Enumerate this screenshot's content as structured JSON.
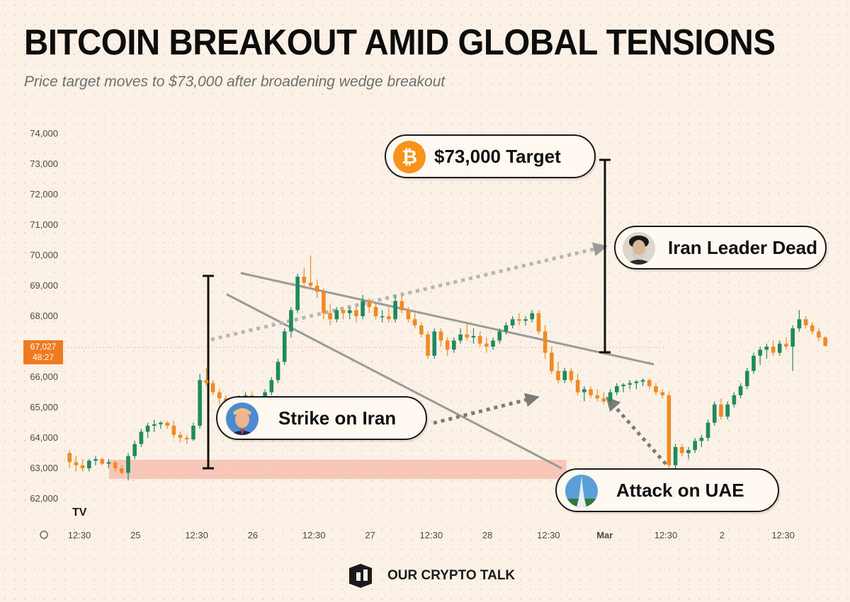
{
  "title": "BITCOIN BREAKOUT AMID GLOBAL TENSIONS",
  "subtitle": "Price target moves to $73,000 after broadening wedge breakout",
  "price_tag": {
    "price": "67,027",
    "countdown": "48:27",
    "color": "#f07a1f"
  },
  "brand": {
    "name": "OUR CRYPTO TALK",
    "tradingview_mark": "TV"
  },
  "callouts": {
    "target": {
      "label": "$73,000 Target",
      "icon": "bitcoin-icon"
    },
    "leader": {
      "label": "Iran Leader Dead",
      "icon": "portrait-icon"
    },
    "strike": {
      "label": "Strike on Iran",
      "icon": "portrait-icon"
    },
    "uae": {
      "label": "Attack on UAE",
      "icon": "skyscraper-icon"
    }
  },
  "colors": {
    "up": "#1f8a5c",
    "down": "#f08a24",
    "support_zone": "#f6b8a8",
    "trend": "#9a9a9a"
  },
  "chart_data": {
    "type": "candlestick",
    "title": "",
    "xlabel": "",
    "ylabel": "",
    "ylim": [
      61700,
      74300
    ],
    "y_ticks": [
      62000,
      63000,
      64000,
      65000,
      66000,
      67000,
      68000,
      69000,
      70000,
      71000,
      72000,
      73000,
      74000
    ],
    "y_tick_labels": [
      "62,000",
      "63,000",
      "64,000",
      "65,000",
      "66,000",
      "",
      "68,000",
      "69,000",
      "70,000",
      "71,000",
      "72,000",
      "73,000",
      "74,000"
    ],
    "x_tick_labels": [
      "12:30",
      "25",
      "12:30",
      "26",
      "12:30",
      "27",
      "12:30",
      "28",
      "12:30",
      "Mar",
      "12:30",
      "2",
      "12:30"
    ],
    "x_tick_times": [
      12.5,
      24,
      36.5,
      48,
      60.5,
      72,
      84.5,
      96,
      108.5,
      120,
      132.5,
      144,
      156.5
    ],
    "time_unit": "hours from Feb 24 00:00",
    "candle_interval_hours": 1.333,
    "first_candle_time": 10.5,
    "candles": [
      [
        63500,
        63600,
        63000,
        63200
      ],
      [
        63200,
        63400,
        62900,
        63100
      ],
      [
        63100,
        63300,
        62900,
        63000
      ],
      [
        63000,
        63300,
        62900,
        63250
      ],
      [
        63250,
        63400,
        63100,
        63300
      ],
      [
        63300,
        63350,
        63100,
        63150
      ],
      [
        63150,
        63300,
        63000,
        63200
      ],
      [
        63200,
        63250,
        62900,
        63000
      ],
      [
        63000,
        63100,
        62800,
        62850
      ],
      [
        62850,
        63500,
        62600,
        63400
      ],
      [
        63400,
        63900,
        63300,
        63800
      ],
      [
        63800,
        64300,
        63700,
        64200
      ],
      [
        64200,
        64500,
        64000,
        64400
      ],
      [
        64400,
        64600,
        64200,
        64450
      ],
      [
        64450,
        64550,
        64300,
        64500
      ],
      [
        64500,
        64550,
        64300,
        64400
      ],
      [
        64400,
        64550,
        64000,
        64100
      ],
      [
        64100,
        64200,
        63850,
        64000
      ],
      [
        64000,
        64100,
        63800,
        63950
      ],
      [
        63950,
        64500,
        63900,
        64400
      ],
      [
        64400,
        66100,
        64300,
        65900
      ],
      [
        65900,
        66300,
        65700,
        65800
      ],
      [
        65800,
        65900,
        65400,
        65500
      ],
      [
        65500,
        65600,
        65100,
        65300
      ],
      [
        65300,
        65400,
        64800,
        64900
      ],
      [
        64900,
        65100,
        64800,
        65000
      ],
      [
        65000,
        65400,
        64900,
        65300
      ],
      [
        65300,
        65500,
        65200,
        65400
      ],
      [
        65400,
        65500,
        65100,
        65200
      ],
      [
        65200,
        65300,
        64900,
        65000
      ],
      [
        65000,
        65600,
        64900,
        65500
      ],
      [
        65500,
        66000,
        65400,
        65900
      ],
      [
        65900,
        66600,
        65800,
        66500
      ],
      [
        66500,
        67600,
        66400,
        67500
      ],
      [
        67500,
        68300,
        67300,
        68200
      ],
      [
        68200,
        69400,
        68100,
        69300
      ],
      [
        69300,
        69600,
        68900,
        69100
      ],
      [
        69100,
        70000,
        68900,
        69000
      ],
      [
        69000,
        69200,
        68600,
        68800
      ],
      [
        68800,
        68900,
        67900,
        68100
      ],
      [
        68100,
        68400,
        67700,
        67900
      ],
      [
        67900,
        68300,
        67800,
        68200
      ],
      [
        68200,
        68300,
        67900,
        68100
      ],
      [
        68100,
        68300,
        67900,
        68200
      ],
      [
        68200,
        68300,
        67800,
        68000
      ],
      [
        68000,
        68700,
        67900,
        68500
      ],
      [
        68500,
        68600,
        68100,
        68300
      ],
      [
        68300,
        68400,
        67900,
        68000
      ],
      [
        68000,
        68200,
        67800,
        68000
      ],
      [
        68000,
        68300,
        67800,
        67900
      ],
      [
        67900,
        68700,
        67800,
        68500
      ],
      [
        68500,
        68700,
        68100,
        68200
      ],
      [
        68200,
        68300,
        67800,
        67900
      ],
      [
        67900,
        68100,
        67600,
        67700
      ],
      [
        67700,
        67800,
        67300,
        67400
      ],
      [
        67400,
        67500,
        66600,
        66700
      ],
      [
        66700,
        67600,
        66600,
        67500
      ],
      [
        67500,
        67600,
        67000,
        67200
      ],
      [
        67200,
        67300,
        66700,
        66900
      ],
      [
        66900,
        67300,
        66800,
        67200
      ],
      [
        67200,
        67600,
        67100,
        67400
      ],
      [
        67400,
        67800,
        67200,
        67300
      ],
      [
        67300,
        67600,
        67100,
        67350
      ],
      [
        67350,
        67500,
        67000,
        67100
      ],
      [
        67100,
        67300,
        66800,
        67000
      ],
      [
        67000,
        67300,
        66900,
        67200
      ],
      [
        67200,
        67600,
        67100,
        67500
      ],
      [
        67500,
        67800,
        67400,
        67700
      ],
      [
        67700,
        68000,
        67600,
        67900
      ],
      [
        67900,
        68100,
        67700,
        67850
      ],
      [
        67850,
        68000,
        67700,
        67900
      ],
      [
        67900,
        68200,
        67800,
        68100
      ],
      [
        68100,
        68200,
        67400,
        67500
      ],
      [
        67500,
        67700,
        66600,
        66800
      ],
      [
        66800,
        67000,
        66100,
        66200
      ],
      [
        66200,
        66500,
        65800,
        65900
      ],
      [
        65900,
        66300,
        65800,
        66200
      ],
      [
        66200,
        66300,
        65800,
        65900
      ],
      [
        65900,
        66100,
        65400,
        65500
      ],
      [
        65500,
        65700,
        65200,
        65600
      ],
      [
        65600,
        65700,
        65300,
        65400
      ],
      [
        65400,
        65600,
        65200,
        65300
      ],
      [
        65300,
        65500,
        65100,
        65200
      ],
      [
        65200,
        65600,
        65100,
        65500
      ],
      [
        65500,
        65800,
        65400,
        65700
      ],
      [
        65700,
        65800,
        65500,
        65750
      ],
      [
        65750,
        65900,
        65600,
        65800
      ],
      [
        65800,
        65900,
        65600,
        65850
      ],
      [
        65850,
        65950,
        65700,
        65900
      ],
      [
        65900,
        65950,
        65600,
        65700
      ],
      [
        65700,
        65800,
        65400,
        65500
      ],
      [
        65500,
        65600,
        65300,
        65400
      ],
      [
        65400,
        65500,
        63000,
        63100
      ],
      [
        63100,
        63800,
        63000,
        63700
      ],
      [
        63700,
        63800,
        63400,
        63500
      ],
      [
        63500,
        63700,
        63300,
        63600
      ],
      [
        63600,
        64000,
        63500,
        63900
      ],
      [
        63900,
        64100,
        63700,
        64000
      ],
      [
        64000,
        64600,
        63900,
        64500
      ],
      [
        64500,
        65200,
        64400,
        65100
      ],
      [
        65100,
        65300,
        64600,
        64700
      ],
      [
        64700,
        65200,
        64600,
        65100
      ],
      [
        65100,
        65500,
        65000,
        65400
      ],
      [
        65400,
        65800,
        65300,
        65700
      ],
      [
        65700,
        66300,
        65600,
        66200
      ],
      [
        66200,
        66800,
        66100,
        66700
      ],
      [
        66700,
        67000,
        66400,
        66900
      ],
      [
        66900,
        67100,
        66600,
        67000
      ],
      [
        67000,
        67200,
        66700,
        66800
      ],
      [
        66800,
        67200,
        66700,
        67100
      ],
      [
        67100,
        67300,
        66900,
        67000
      ],
      [
        67000,
        67700,
        66200,
        67600
      ],
      [
        67600,
        68200,
        67500,
        67900
      ],
      [
        67900,
        68000,
        67600,
        67700
      ],
      [
        67700,
        67800,
        67400,
        67500
      ],
      [
        67500,
        67600,
        67200,
        67300
      ],
      [
        67300,
        67350,
        67000,
        67027
      ]
    ],
    "annotations": [
      "$73,000 Target",
      "Iran Leader Dead",
      "Strike on Iran",
      "Attack on UAE"
    ]
  }
}
